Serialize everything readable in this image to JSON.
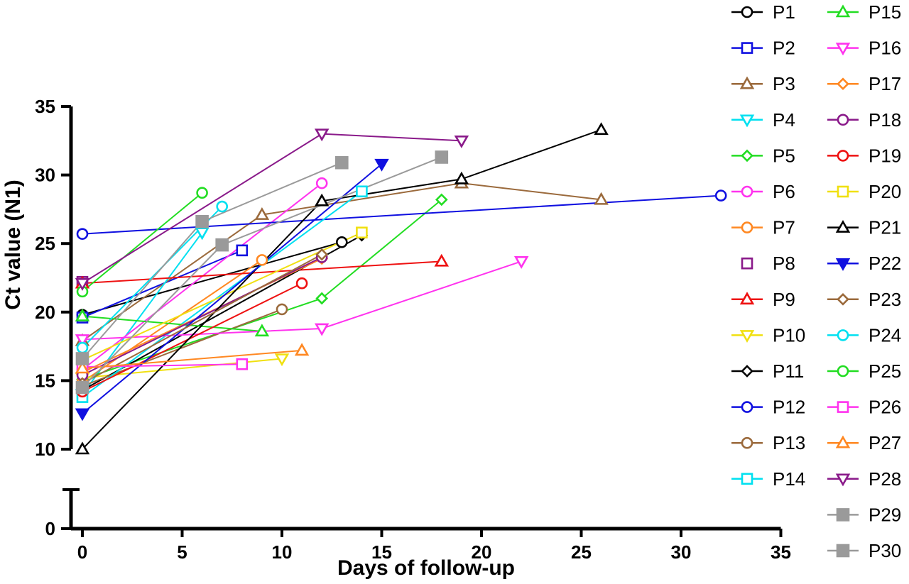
{
  "chart_data": {
    "type": "line",
    "xlabel": "Days of follow-up",
    "ylabel": "Ct value (N1)",
    "xlim": [
      0,
      35
    ],
    "ylim_upper": [
      10,
      35
    ],
    "ylim_lower": [
      0,
      10
    ],
    "axis_break": true,
    "x_ticks": [
      "0",
      "5",
      "10",
      "15",
      "20",
      "25",
      "30",
      "35"
    ],
    "y_ticks_upper": [
      "10",
      "15",
      "20",
      "25",
      "30",
      "35"
    ],
    "y_ticks_lower": [
      "0"
    ],
    "legend_position": "right",
    "grid": false,
    "series": [
      {
        "name": "P1",
        "color": "#000000",
        "marker": "circle",
        "x": [
          0,
          13
        ],
        "y": [
          19.8,
          25.1
        ]
      },
      {
        "name": "P2",
        "color": "#1010e0",
        "marker": "square",
        "x": [
          0,
          8
        ],
        "y": [
          19.6,
          24.5
        ]
      },
      {
        "name": "P3",
        "color": "#9b6a3c",
        "marker": "triangle-up",
        "x": [
          0,
          9,
          19,
          26
        ],
        "y": [
          17.9,
          27.1,
          29.4,
          28.2
        ]
      },
      {
        "name": "P4",
        "color": "#00e0f0",
        "marker": "triangle-down",
        "x": [
          0,
          6
        ],
        "y": [
          14.0,
          25.8
        ]
      },
      {
        "name": "P5",
        "color": "#22dd22",
        "marker": "diamond",
        "x": [
          0,
          12,
          18
        ],
        "y": [
          15.1,
          21.0,
          28.2
        ]
      },
      {
        "name": "P6",
        "color": "#ff33ee",
        "marker": "circle",
        "x": [
          0,
          12
        ],
        "y": [
          15.8,
          29.4
        ]
      },
      {
        "name": "P7",
        "color": "#ff8822",
        "marker": "circle",
        "x": [
          0,
          9
        ],
        "y": [
          14.9,
          23.8
        ]
      },
      {
        "name": "P8",
        "color": "#8a1a8a",
        "marker": "square",
        "x": [
          0
        ],
        "y": [
          22.2
        ]
      },
      {
        "name": "P9",
        "color": "#ee1111",
        "marker": "triangle-up",
        "x": [
          0,
          18
        ],
        "y": [
          22.1,
          23.7
        ]
      },
      {
        "name": "P10",
        "color": "#f0e010",
        "marker": "triangle-down",
        "x": [
          0,
          10
        ],
        "y": [
          15.2,
          16.6
        ]
      },
      {
        "name": "P11",
        "color": "#000000",
        "marker": "diamond",
        "x": [
          0,
          14
        ],
        "y": [
          14.3,
          25.6
        ]
      },
      {
        "name": "P12",
        "color": "#1010e0",
        "marker": "circle",
        "x": [
          0,
          32
        ],
        "y": [
          25.7,
          28.5
        ]
      },
      {
        "name": "P13",
        "color": "#9b6a3c",
        "marker": "circle",
        "x": [
          0,
          10
        ],
        "y": [
          14.6,
          20.2
        ]
      },
      {
        "name": "P14",
        "color": "#00e0f0",
        "marker": "square",
        "x": [
          0,
          14
        ],
        "y": [
          13.8,
          28.8
        ]
      },
      {
        "name": "P15",
        "color": "#22dd22",
        "marker": "triangle-up",
        "x": [
          0,
          9
        ],
        "y": [
          19.7,
          18.6
        ]
      },
      {
        "name": "P16",
        "color": "#ff33ee",
        "marker": "triangle-down",
        "x": [
          0,
          12,
          22
        ],
        "y": [
          18.0,
          18.8,
          23.7
        ]
      },
      {
        "name": "P17",
        "color": "#ff8822",
        "marker": "diamond",
        "x": [
          0,
          12
        ],
        "y": [
          15.6,
          23.9
        ]
      },
      {
        "name": "P18",
        "color": "#8a1a8a",
        "marker": "circle",
        "x": [
          0,
          12
        ],
        "y": [
          15.4,
          24.0
        ]
      },
      {
        "name": "P19",
        "color": "#ee1111",
        "marker": "circle",
        "x": [
          0,
          11
        ],
        "y": [
          14.2,
          22.1
        ]
      },
      {
        "name": "P20",
        "color": "#f0e010",
        "marker": "square",
        "x": [
          0,
          14
        ],
        "y": [
          16.5,
          25.8
        ]
      },
      {
        "name": "P21",
        "color": "#000000",
        "marker": "triangle-up",
        "x": [
          0,
          12,
          19,
          26
        ],
        "y": [
          10.0,
          28.1,
          29.7,
          33.3
        ]
      },
      {
        "name": "P22",
        "color": "#1010e0",
        "marker": "triangle-down-filled",
        "x": [
          0,
          15
        ],
        "y": [
          12.6,
          30.8
        ]
      },
      {
        "name": "P23",
        "color": "#9b6a3c",
        "marker": "diamond",
        "x": [
          0,
          12
        ],
        "y": [
          14.8,
          24.2
        ]
      },
      {
        "name": "P24",
        "color": "#00e0f0",
        "marker": "circle",
        "x": [
          0,
          7
        ],
        "y": [
          17.4,
          27.7
        ]
      },
      {
        "name": "P25",
        "color": "#22dd22",
        "marker": "circle",
        "x": [
          0,
          6
        ],
        "y": [
          21.5,
          28.7
        ]
      },
      {
        "name": "P26",
        "color": "#ff33ee",
        "marker": "square",
        "x": [
          0,
          8
        ],
        "y": [
          16.0,
          16.2
        ]
      },
      {
        "name": "P27",
        "color": "#ff8822",
        "marker": "triangle-up",
        "x": [
          0,
          11
        ],
        "y": [
          15.9,
          17.2
        ]
      },
      {
        "name": "P28",
        "color": "#8a1a8a",
        "marker": "triangle-down",
        "x": [
          0,
          12,
          19
        ],
        "y": [
          22.1,
          33.0,
          32.5
        ]
      },
      {
        "name": "P29",
        "color": "#9a9a9a",
        "marker": "square-filled",
        "x": [
          0,
          6,
          13
        ],
        "y": [
          16.6,
          26.6,
          30.9
        ]
      },
      {
        "name": "P30",
        "color": "#9a9a9a",
        "marker": "square-filled",
        "x": [
          0,
          7,
          18
        ],
        "y": [
          14.5,
          24.9,
          31.3
        ]
      }
    ]
  }
}
